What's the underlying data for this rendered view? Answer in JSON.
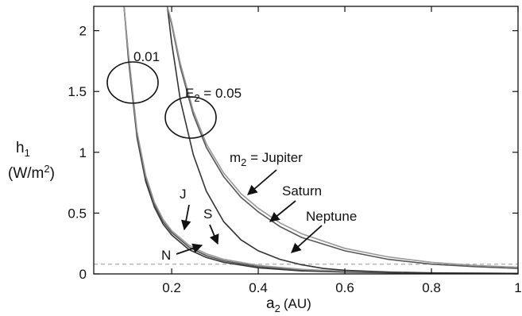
{
  "chart_data": {
    "type": "line",
    "x_axis": {
      "label_main": "a",
      "label_sub": "2",
      "label_unit": "(AU)",
      "range": [
        0.02,
        1.0
      ],
      "ticks": [
        0.2,
        0.4,
        0.6,
        0.8,
        1.0
      ],
      "tick_labels": [
        "0.2",
        "0.4",
        "0.6",
        "0.8",
        "1"
      ]
    },
    "y_axis": {
      "label_main": "h",
      "label_sub": "1",
      "label_unit_pre": "(W/m",
      "label_unit_sup": "2",
      "label_unit_post": ")",
      "range": [
        0,
        2.2
      ],
      "ticks": [
        0,
        0.5,
        1.0,
        1.5,
        2.0
      ],
      "tick_labels": [
        "0",
        "0.5",
        "1",
        "1.5",
        "2"
      ]
    },
    "grid": false,
    "series": [
      {
        "group": "E2 = 0.01",
        "color": "#333333",
        "x": [
          0.09,
          0.1,
          0.12,
          0.14,
          0.16,
          0.18,
          0.2,
          0.24,
          0.28,
          0.32,
          0.4,
          0.5,
          0.6,
          0.7,
          0.8,
          1.0
        ],
        "y": [
          2.2,
          1.77,
          1.12,
          0.76,
          0.55,
          0.41,
          0.32,
          0.2,
          0.135,
          0.095,
          0.05,
          0.025,
          0.015,
          0.009,
          0.006,
          0.003
        ]
      },
      {
        "group": "E2 = 0.01",
        "color": "#555555",
        "x": [
          0.09,
          0.1,
          0.12,
          0.14,
          0.16,
          0.18,
          0.2,
          0.24,
          0.28,
          0.32,
          0.4,
          0.5,
          0.6,
          0.7,
          0.8,
          1.0
        ],
        "y": [
          2.2,
          1.8,
          1.15,
          0.79,
          0.57,
          0.43,
          0.34,
          0.22,
          0.15,
          0.108,
          0.06,
          0.032,
          0.019,
          0.012,
          0.008,
          0.004
        ]
      },
      {
        "group": "E2 = 0.01",
        "color": "#999999",
        "x": [
          0.09,
          0.1,
          0.12,
          0.14,
          0.16,
          0.18,
          0.2,
          0.24,
          0.28,
          0.32,
          0.4,
          0.5,
          0.6,
          0.7,
          0.8,
          1.0
        ],
        "y": [
          2.2,
          1.82,
          1.17,
          0.81,
          0.59,
          0.45,
          0.355,
          0.235,
          0.165,
          0.12,
          0.07,
          0.038,
          0.023,
          0.015,
          0.01,
          0.005
        ]
      },
      {
        "group": "E2 = 0.05",
        "color": "#333333",
        "x": [
          0.19,
          0.2,
          0.22,
          0.25,
          0.28,
          0.32,
          0.36,
          0.4,
          0.45,
          0.5,
          0.55,
          0.6,
          0.7,
          0.8,
          1.0
        ],
        "y": [
          2.2,
          1.9,
          1.43,
          0.98,
          0.68,
          0.43,
          0.28,
          0.19,
          0.12,
          0.075,
          0.045,
          0.03,
          0.015,
          0.008,
          0.003
        ]
      },
      {
        "group": "E2 = 0.05",
        "color": "#555555",
        "x": [
          0.19,
          0.2,
          0.22,
          0.25,
          0.28,
          0.32,
          0.36,
          0.4,
          0.45,
          0.5,
          0.6,
          0.7,
          0.8,
          0.9,
          1.0
        ],
        "y": [
          2.2,
          2.05,
          1.7,
          1.31,
          1.04,
          0.8,
          0.63,
          0.51,
          0.39,
          0.3,
          0.19,
          0.12,
          0.08,
          0.06,
          0.045
        ]
      },
      {
        "group": "E2 = 0.05",
        "color": "#999999",
        "x": [
          0.19,
          0.2,
          0.22,
          0.25,
          0.28,
          0.32,
          0.36,
          0.4,
          0.45,
          0.5,
          0.6,
          0.7,
          0.8,
          0.9,
          1.0
        ],
        "y": [
          2.2,
          2.07,
          1.73,
          1.34,
          1.07,
          0.83,
          0.66,
          0.54,
          0.42,
          0.33,
          0.21,
          0.14,
          0.095,
          0.07,
          0.055
        ]
      }
    ],
    "reference_line": {
      "y": 0.08,
      "style": "dashed",
      "color": "#aaaaaa"
    },
    "annotations": {
      "eps_small": "0.01",
      "eps_large_main": "E",
      "eps_large_sub": "2",
      "eps_large_rest": " = 0.05",
      "m2_main": "m",
      "m2_sub": "2",
      "m2_rest": " = Jupiter",
      "saturn": "Saturn",
      "neptune": "Neptune",
      "j": "J",
      "s": "S",
      "n": "N"
    }
  }
}
